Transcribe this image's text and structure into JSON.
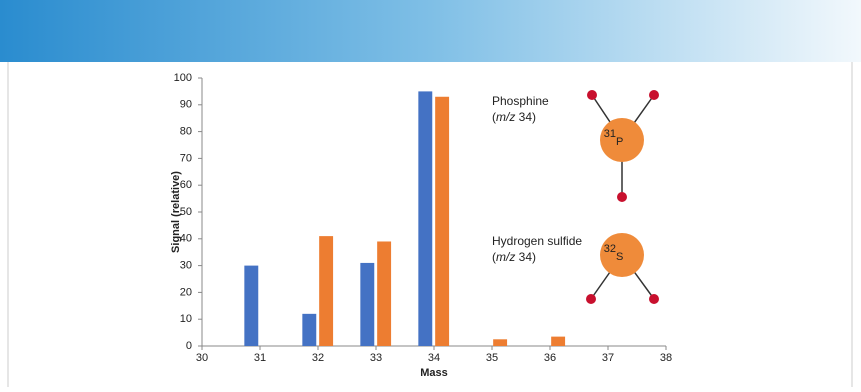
{
  "chart_data": {
    "type": "bar",
    "x": [
      31,
      32,
      33,
      34,
      35,
      36
    ],
    "series": [
      {
        "color": "#4472c4",
        "values": [
          30,
          12,
          31,
          95,
          0,
          0
        ]
      },
      {
        "color": "#ed7d31",
        "values": [
          0,
          41,
          39,
          93,
          2.5,
          3.5
        ]
      }
    ],
    "xlim": [
      30,
      38
    ],
    "xticks": [
      30,
      31,
      32,
      33,
      34,
      35,
      36,
      37,
      38
    ],
    "ylim": [
      0,
      100
    ],
    "yticks": [
      0,
      10,
      20,
      30,
      40,
      50,
      60,
      70,
      80,
      90,
      100
    ],
    "grid": false,
    "xlabel": "Mass",
    "ylabel": "Signal (relative)",
    "annotations": [
      {
        "name": "Phosphine",
        "mz": [
          "(",
          "m/z",
          " 34)"
        ],
        "isotope": "31",
        "element": "P"
      },
      {
        "name": "Hydrogen sulfide",
        "mz": [
          "(",
          "m/z",
          " 34)"
        ],
        "isotope": "32",
        "element": "S"
      }
    ]
  }
}
